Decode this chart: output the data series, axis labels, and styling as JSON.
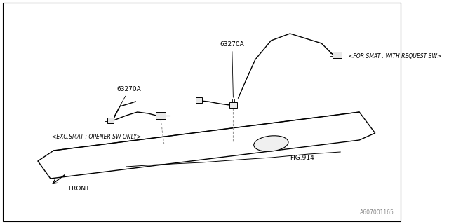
{
  "background_color": "#ffffff",
  "border_color": "#000000",
  "text_color": "#000000",
  "line_color": "#000000",
  "dashed_color": "#999999",
  "fig_width": 6.4,
  "fig_height": 3.2,
  "dpi": 100,
  "part_number_1": "63270A",
  "part_number_2": "63270A",
  "label_smat": "<FOR SMAT : WITH REQUEST SW>",
  "label_exc": "<EXC.SMAT : OPENER SW ONLY>",
  "label_fig": "FIG.914",
  "label_front": "FRONT",
  "footnote": "A607001165"
}
